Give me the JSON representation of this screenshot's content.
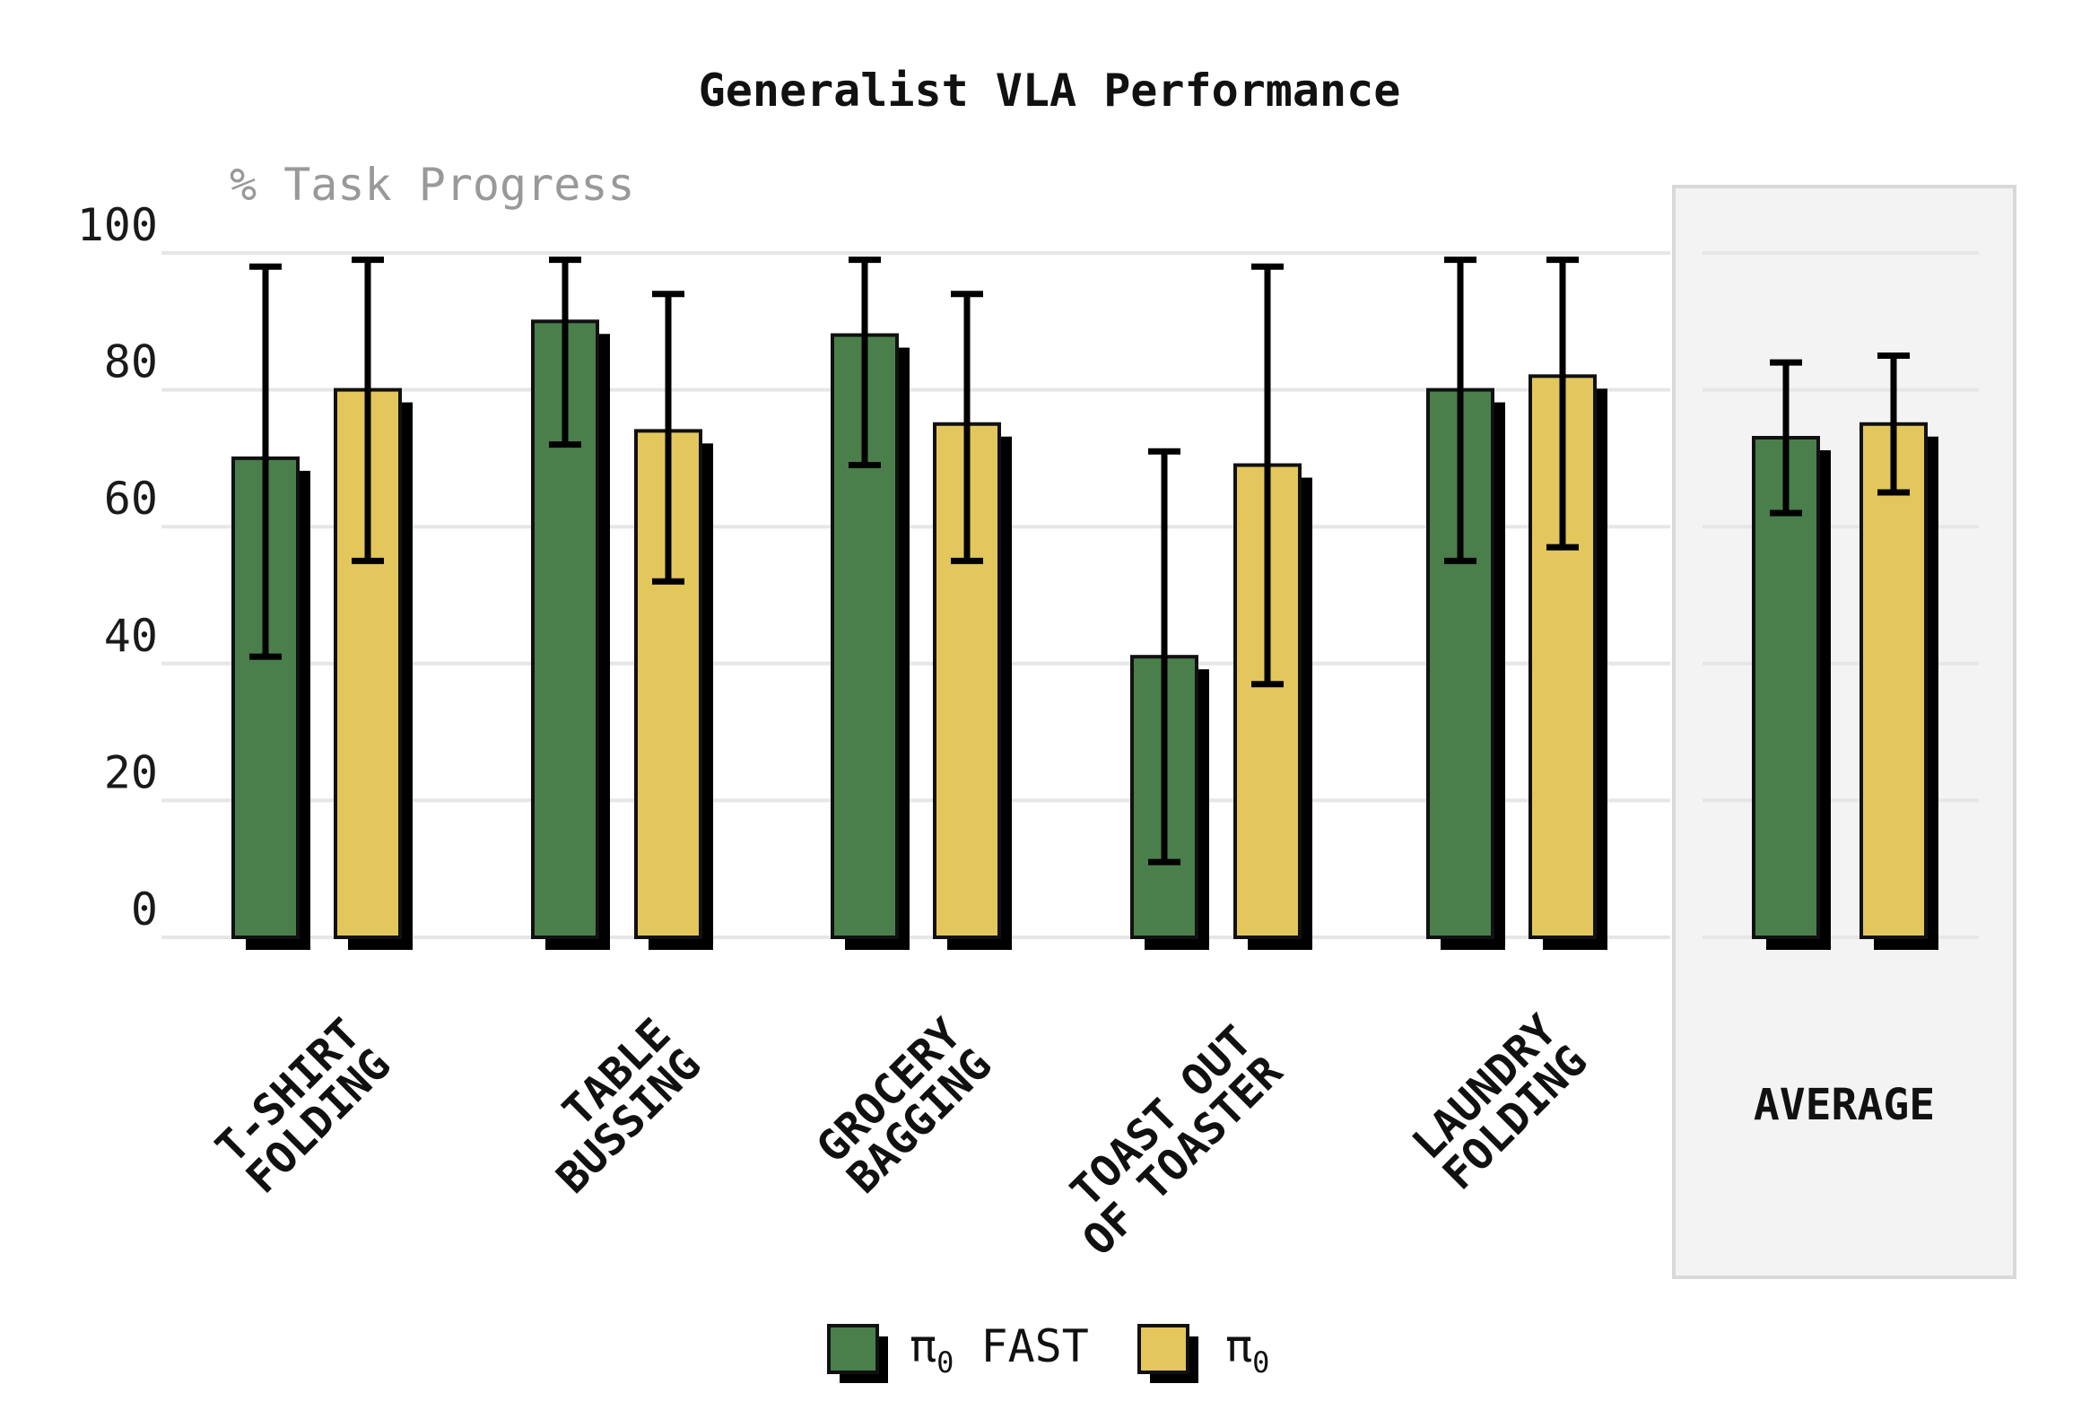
{
  "chart_data": {
    "type": "bar",
    "title": "Generalist VLA Performance",
    "ylabel": "% Task Progress",
    "ylim": [
      0,
      100
    ],
    "yticks": [
      "0",
      "20",
      "40",
      "60",
      "80",
      "100"
    ],
    "grid": true,
    "legend_position": "bottom",
    "categories": [
      [
        "T-SHIRT",
        "FOLDING"
      ],
      [
        "TABLE",
        "BUSSING"
      ],
      [
        "GROCERY",
        "BAGGING"
      ],
      [
        "TOAST OUT",
        "OF TOASTER"
      ],
      [
        "LAUNDRY",
        "FOLDING"
      ],
      [
        "AVERAGE"
      ]
    ],
    "highlighted_category": "AVERAGE",
    "series": [
      {
        "name": "π₀ FAST",
        "legend_base": "π",
        "legend_sub": "0",
        "legend_suffix": " FAST",
        "color": "#4a7f4b",
        "values": [
          70,
          90,
          88,
          41,
          80,
          73
        ],
        "error_low": [
          41,
          72,
          69,
          11,
          55,
          62
        ],
        "error_high": [
          98,
          99,
          99,
          71,
          99,
          84
        ]
      },
      {
        "name": "π₀",
        "legend_base": "π",
        "legend_sub": "0",
        "legend_suffix": "",
        "color": "#e3c75d",
        "values": [
          80,
          74,
          75,
          69,
          82,
          75
        ],
        "error_low": [
          55,
          52,
          55,
          37,
          57,
          65
        ],
        "error_high": [
          99,
          94,
          94,
          98,
          99,
          85
        ]
      }
    ],
    "colors": {
      "grid": "#e6e6e6",
      "average_panel_fill": "#f3f3f3",
      "average_panel_border": "#d9d9d9",
      "shadow": "#000000",
      "outline": "#111111"
    }
  }
}
